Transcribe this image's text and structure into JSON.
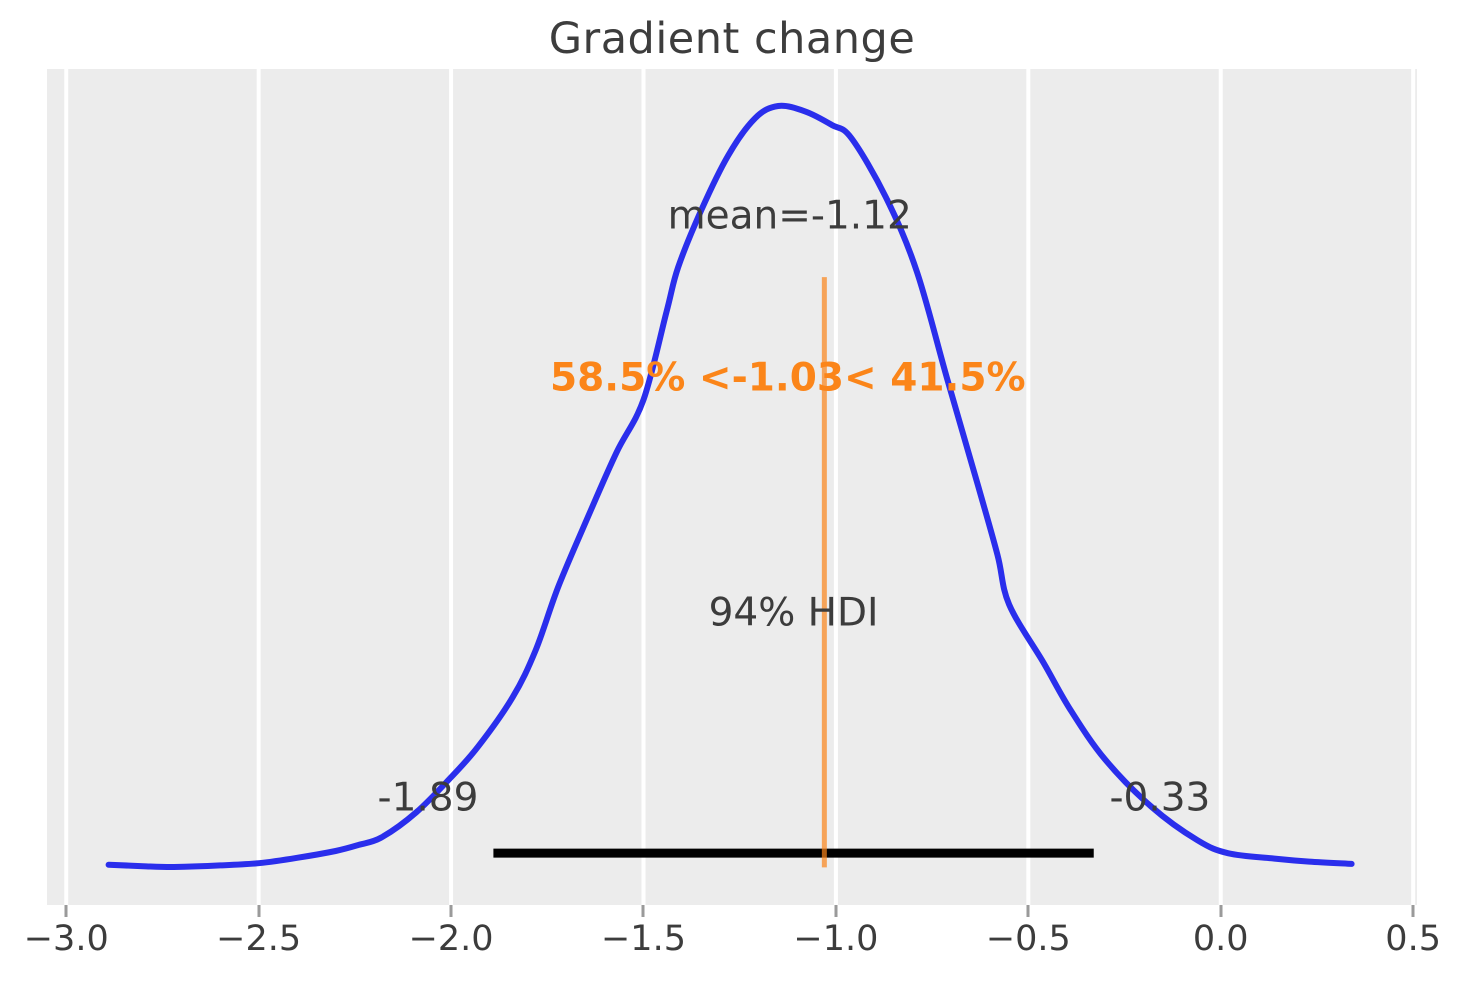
{
  "title": "Gradient change",
  "chart_data": {
    "type": "kde-posterior",
    "title": "Gradient change",
    "xlabel": "",
    "ylabel": "",
    "legend": "none",
    "grid": "vertical-white-on-gray",
    "xlim": [
      -3.05,
      0.51
    ],
    "x_ticks": [
      {
        "value": -3.0,
        "label": "−3.0"
      },
      {
        "value": -2.5,
        "label": "−2.5"
      },
      {
        "value": -2.0,
        "label": "−2.0"
      },
      {
        "value": -1.5,
        "label": "−1.5"
      },
      {
        "value": -1.0,
        "label": "−1.0"
      },
      {
        "value": -0.5,
        "label": "−0.5"
      },
      {
        "value": 0.0,
        "label": "0.0"
      },
      {
        "value": 0.5,
        "label": "0.5"
      }
    ],
    "stats": {
      "mean": -1.12,
      "hdi_prob": "94%",
      "hdi_low": -1.89,
      "hdi_high": -0.33,
      "ref_val": -1.03,
      "pct_below_ref": "58.5%",
      "pct_above_ref": "41.5%"
    },
    "annotations": {
      "mean_label": {
        "text": "mean=-1.12",
        "x": -1.12,
        "y_frac": 0.177
      },
      "ref_text": {
        "text": "58.5% <-1.03< 41.5%",
        "x": -1.125,
        "y_frac": 0.371
      },
      "hdi_label": {
        "text": "94% HDI",
        "x": -1.11,
        "y_frac": 0.652
      },
      "hdi_low_label": {
        "text": "-1.89",
        "x": -2.06,
        "y_frac": 0.873
      },
      "hdi_high_label": {
        "text": "-0.33",
        "x": -0.158,
        "y_frac": 0.873
      }
    },
    "hdi_bar": {
      "lo": -1.89,
      "hi": -0.33,
      "y_frac": 0.938,
      "thickness": 9
    },
    "ref_line": {
      "x": -1.03,
      "y_top_frac": 0.249,
      "y_bot_frac": 0.955,
      "thickness": 5
    },
    "kde": {
      "baseline_frac": 0.9545,
      "peak_frac": 0.0443,
      "points": [
        [
          -2.89,
          0.003
        ],
        [
          -2.8,
          0.001
        ],
        [
          -2.72,
          0.0
        ],
        [
          -2.6,
          0.002
        ],
        [
          -2.5,
          0.005
        ],
        [
          -2.4,
          0.012
        ],
        [
          -2.3,
          0.021
        ],
        [
          -2.24,
          0.029
        ],
        [
          -2.18,
          0.039
        ],
        [
          -2.09,
          0.072
        ],
        [
          -2.0,
          0.118
        ],
        [
          -1.93,
          0.158
        ],
        [
          -1.84,
          0.223
        ],
        [
          -1.78,
          0.285
        ],
        [
          -1.72,
          0.37
        ],
        [
          -1.64,
          0.465
        ],
        [
          -1.57,
          0.545
        ],
        [
          -1.5,
          0.614
        ],
        [
          -1.44,
          0.73
        ],
        [
          -1.41,
          0.788
        ],
        [
          -1.35,
          0.863
        ],
        [
          -1.28,
          0.935
        ],
        [
          -1.21,
          0.984
        ],
        [
          -1.15,
          1.0
        ],
        [
          -1.08,
          0.993
        ],
        [
          -1.01,
          0.975
        ],
        [
          -0.96,
          0.958
        ],
        [
          -0.87,
          0.88
        ],
        [
          -0.79,
          0.783
        ],
        [
          -0.71,
          0.64
        ],
        [
          -0.63,
          0.5
        ],
        [
          -0.58,
          0.41
        ],
        [
          -0.55,
          0.345
        ],
        [
          -0.46,
          0.268
        ],
        [
          -0.39,
          0.206
        ],
        [
          -0.3,
          0.141
        ],
        [
          -0.18,
          0.079
        ],
        [
          -0.06,
          0.035
        ],
        [
          0.02,
          0.018
        ],
        [
          0.14,
          0.011
        ],
        [
          0.23,
          0.007
        ],
        [
          0.34,
          0.004
        ]
      ]
    },
    "colors": {
      "panel_bg": "#ececec",
      "grid": "#ffffff",
      "curve": "#2a2eec",
      "hdi_bar": "#000000",
      "ref_line": "#fb8519",
      "ref_line_alpha": 0.7,
      "ref_text": "#fb8519",
      "text": "#3c3c3c",
      "tick_mark": "#9a9a9a"
    }
  }
}
